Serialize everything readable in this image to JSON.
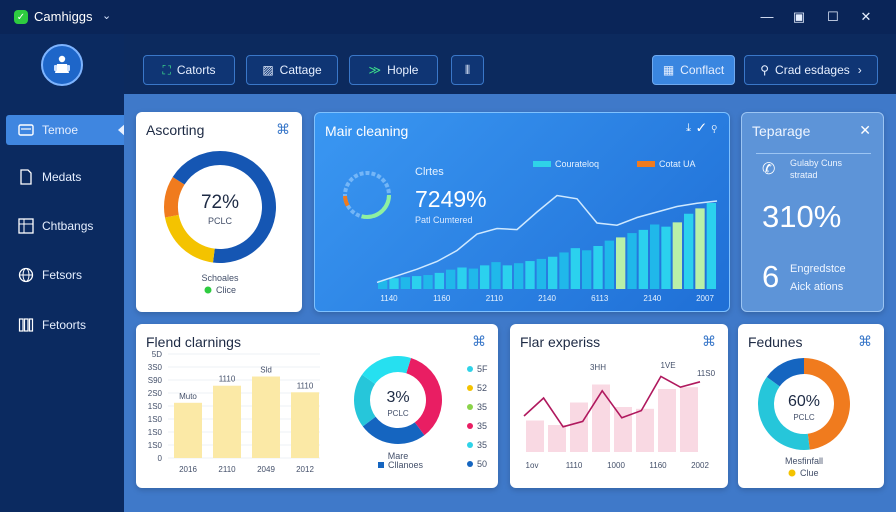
{
  "app": {
    "title": "Camhiggs",
    "window_controls": [
      "minimize",
      "restore",
      "maximize",
      "close"
    ]
  },
  "sidebar": {
    "items": [
      {
        "label": "Temoe",
        "icon": "card-icon",
        "active": true
      },
      {
        "label": "Medats",
        "icon": "document-icon",
        "active": false
      },
      {
        "label": "Chtbangs",
        "icon": "grid-icon",
        "active": false
      },
      {
        "label": "Fetsors",
        "icon": "globe-icon",
        "active": false
      },
      {
        "label": "Fetoorts",
        "icon": "bars-icon",
        "active": false
      }
    ]
  },
  "toolbar": {
    "buttons": [
      {
        "label": "Catorts",
        "icon": "chart-icon"
      },
      {
        "label": "Cattage",
        "icon": "image-icon"
      },
      {
        "label": "Hople",
        "icon": "chevron-icon"
      }
    ],
    "filter_icon": "sliders-icon",
    "contact_label": "Conflact",
    "search_label": "Crad esdages"
  },
  "cards": {
    "assorting": {
      "title": "Ascorting",
      "value": "72%",
      "sub": "PCLC",
      "footer_label": "Schoales",
      "legend": "Clice",
      "donut": [
        {
          "value": 52,
          "color": "#1556b3"
        },
        {
          "value": 20,
          "color": "#f4c300"
        },
        {
          "value": 12,
          "color": "#f07b1e"
        },
        {
          "value": 16,
          "color": "#1556b3"
        }
      ]
    },
    "main_cleaning": {
      "title": "Mair cleaning",
      "stat_label": "Clrtes",
      "stat_value": "7249%",
      "stat_sub": "Patl Cumtered",
      "legend": [
        {
          "label": "Courateloq",
          "color": "#2fd3e8"
        },
        {
          "label": "Cotat UA",
          "color": "#f07b1e"
        }
      ],
      "x_labels": [
        "1140",
        "1160",
        "2110",
        "2140",
        "6113",
        "2140",
        "2007"
      ],
      "bars": [
        8,
        10,
        11,
        12,
        13,
        15,
        18,
        20,
        19,
        22,
        25,
        22,
        24,
        26,
        28,
        30,
        34,
        38,
        36,
        40,
        45,
        48,
        52,
        55,
        60,
        58,
        62,
        70,
        75,
        80
      ],
      "bar_highlight": [
        21,
        26,
        28
      ],
      "line": [
        6,
        12,
        18,
        25,
        35,
        50,
        55,
        54,
        70,
        85,
        82,
        60,
        58,
        65,
        70,
        75,
        78,
        80
      ]
    },
    "topparage": {
      "title": "Teparage",
      "phone_label": "Gulaby Cuns stratad",
      "big_value": "310%",
      "count_value": "6",
      "count_label_1": "Engredstce",
      "count_label_2": "Aick ations"
    },
    "friend_cleanings": {
      "title": "Flend clarnings",
      "y_ticks": [
        "5D",
        "3S0",
        "S90",
        "2S0",
        "1S0",
        "1S0",
        "1S0",
        "1S0",
        "0"
      ],
      "bars": [
        {
          "x": "2016",
          "value": 42,
          "label": "Muto"
        },
        {
          "x": "2110",
          "value": 55,
          "label": "1110"
        },
        {
          "x": "2049",
          "value": 62,
          "label": "Sld"
        },
        {
          "x": "2012",
          "value": 50,
          "label": "1110"
        }
      ],
      "pie_value": "3%",
      "pie_sub": "PCLC",
      "pie_caption": "Mare",
      "pie_legend": "Cllanoes",
      "pie": [
        {
          "value": 35,
          "color": "#e91e63"
        },
        {
          "value": 25,
          "color": "#1565c0"
        },
        {
          "value": 20,
          "color": "#26c6da"
        },
        {
          "value": 20,
          "color": "#26e0f0"
        }
      ],
      "side_legend": [
        {
          "label": "5F",
          "color": "#2fd3e8"
        },
        {
          "label": "52",
          "color": "#f4c300"
        },
        {
          "label": "35",
          "color": "#8bd34a"
        },
        {
          "label": "35",
          "color": "#e91e63"
        },
        {
          "label": "35",
          "color": "#2fd3e8"
        },
        {
          "label": "50",
          "color": "#1565c0"
        }
      ]
    },
    "flat_expenses": {
      "title": "Flar experiss",
      "x_labels": [
        "1ov",
        "1110",
        "1000",
        "1160",
        "2002"
      ],
      "bar_labels": [
        "3HH",
        "1VE",
        "11S0"
      ],
      "bars": [
        35,
        30,
        55,
        75,
        50,
        48,
        70,
        72
      ],
      "line": [
        40,
        60,
        28,
        34,
        68,
        38,
        46,
        84,
        72,
        78
      ]
    },
    "features": {
      "title": "Fedunes",
      "value": "60%",
      "sub": "PCLC",
      "footer_label": "Mesfinfall",
      "legend": "Clue",
      "donut": [
        {
          "value": 48,
          "color": "#f07b1e"
        },
        {
          "value": 37,
          "color": "#26c6da"
        },
        {
          "value": 15,
          "color": "#1565c0"
        }
      ]
    }
  }
}
